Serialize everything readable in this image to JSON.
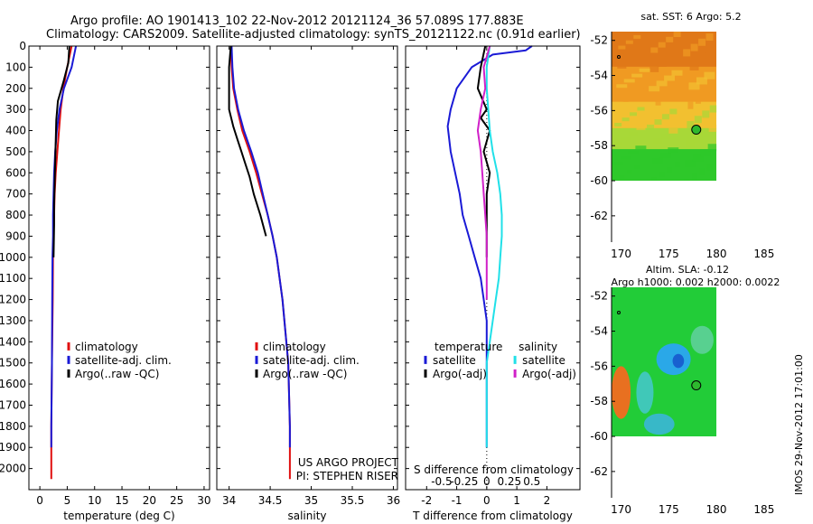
{
  "header": {
    "line1": "Argo profile: AO 1901413_102 22-Nov-2012 20121124_36 57.089S 177.883E",
    "line2": "Climatology: CARS2009. Satellite-adjusted climatology: synTS_20121122.nc (0.91d earlier)"
  },
  "side_label": "IMOS 29-Nov-2012 17:01:00",
  "colors": {
    "red": "#e01010",
    "blue": "#1a1ad6",
    "black": "#000000",
    "cyan": "#20e0e8",
    "magenta": "#d020c8"
  },
  "chart_data": [
    {
      "type": "line",
      "id": "temperature",
      "xlabel": "temperature (deg C)",
      "xlim": [
        -2,
        31
      ],
      "ylim": [
        2100,
        0
      ],
      "xticks": [
        0,
        5,
        10,
        15,
        20,
        25,
        30
      ],
      "yticks": [
        0,
        100,
        200,
        300,
        400,
        500,
        600,
        700,
        800,
        900,
        1000,
        1100,
        1200,
        1300,
        1400,
        1500,
        1600,
        1700,
        1800,
        1900,
        2000
      ],
      "legend_placement": "lower-center",
      "series": [
        {
          "name": "climatology",
          "color": "#e01010",
          "x": [
            5.8,
            5.0,
            4.3,
            3.8,
            3.5,
            3.2,
            2.9,
            2.7,
            2.6,
            2.5,
            2.4,
            2.35,
            2.2,
            2.1,
            2.1
          ],
          "y": [
            0,
            100,
            200,
            300,
            400,
            500,
            600,
            700,
            800,
            900,
            1000,
            1200,
            1500,
            1800,
            2050
          ]
        },
        {
          "name": "satellite-adj. clim.",
          "color": "#1a1ad6",
          "x": [
            6.6,
            5.8,
            4.4,
            3.6,
            3.1,
            2.8,
            2.6,
            2.5,
            2.4,
            2.4,
            2.3,
            2.25,
            2.2,
            2.1,
            2.1
          ],
          "y": [
            0,
            100,
            200,
            300,
            400,
            500,
            600,
            700,
            800,
            900,
            1000,
            1200,
            1500,
            1800,
            1900
          ]
        },
        {
          "name": "Argo(..raw -QC)",
          "color": "#000000",
          "x": [
            5.4,
            5.2,
            4.3,
            3.3,
            3.0,
            2.9,
            2.8,
            2.7,
            2.6,
            2.6,
            2.5
          ],
          "y": [
            0,
            80,
            170,
            260,
            350,
            450,
            550,
            650,
            750,
            850,
            1000
          ]
        }
      ]
    },
    {
      "type": "line",
      "id": "salinity",
      "xlabel": "salinity",
      "xlim": [
        33.85,
        36.05
      ],
      "ylim": [
        2100,
        0
      ],
      "xticks": [
        34,
        34.5,
        35,
        35.5,
        36
      ],
      "legend_placement": "lower-center",
      "series": [
        {
          "name": "climatology",
          "color": "#e01010",
          "x": [
            34.02,
            34.03,
            34.05,
            34.1,
            34.16,
            34.25,
            34.33,
            34.4,
            34.47,
            34.53,
            34.58,
            34.65,
            34.72,
            34.74,
            34.74
          ],
          "y": [
            0,
            100,
            200,
            300,
            400,
            500,
            600,
            700,
            800,
            900,
            1000,
            1200,
            1500,
            1800,
            2050
          ]
        },
        {
          "name": "satellite-adj. clim.",
          "color": "#1a1ad6",
          "x": [
            34.03,
            34.04,
            34.06,
            34.11,
            34.18,
            34.27,
            34.35,
            34.41,
            34.47,
            34.53,
            34.58,
            34.65,
            34.72,
            34.74,
            34.74
          ],
          "y": [
            0,
            100,
            200,
            300,
            400,
            500,
            600,
            700,
            800,
            900,
            1000,
            1200,
            1500,
            1800,
            1900
          ]
        },
        {
          "name": "Argo(..raw -QC)",
          "color": "#000000",
          "x": [
            34.02,
            34.0,
            34.0,
            34.0,
            34.05,
            34.1,
            34.15,
            34.2,
            34.25,
            34.3,
            34.38,
            34.45
          ],
          "y": [
            0,
            100,
            200,
            300,
            380,
            440,
            500,
            560,
            620,
            700,
            800,
            900
          ]
        }
      ],
      "annotations": [
        "US ARGO PROJECT",
        "PI: STEPHEN RISER"
      ]
    },
    {
      "type": "line",
      "id": "difference",
      "xlabel": "T difference from climatology",
      "xlabel_top": "S difference from climatology",
      "xlim": [
        -2.7,
        3.1
      ],
      "ylim": [
        2100,
        0
      ],
      "xticks": [
        -2,
        -1,
        0,
        1,
        2
      ],
      "xticks_s": [
        "-0.5",
        "-0.25",
        "0",
        "0.25",
        "0.5"
      ],
      "legend_groups": [
        "temperature",
        "salinity"
      ],
      "series": [
        {
          "name": "satellite",
          "group": "temperature",
          "color": "#1a1ad6",
          "x": [
            1.5,
            1.3,
            0.2,
            -0.5,
            -1.0,
            -1.2,
            -1.3,
            -1.2,
            -1.05,
            -0.9,
            -0.8,
            -0.6,
            -0.4,
            -0.2,
            -0.1,
            0,
            0,
            0,
            0
          ],
          "y": [
            0,
            20,
            40,
            100,
            200,
            300,
            380,
            500,
            600,
            700,
            800,
            900,
            1000,
            1100,
            1200,
            1300,
            1500,
            1800,
            1900
          ]
        },
        {
          "name": "Argo(-adj)",
          "group": "temperature",
          "color": "#000000",
          "x": [
            -0.05,
            -0.2,
            -0.3,
            0,
            -0.2,
            0.1,
            -0.1,
            0.1,
            0,
            0,
            0
          ],
          "y": [
            0,
            100,
            200,
            300,
            340,
            400,
            500,
            600,
            700,
            850,
            1000
          ]
        },
        {
          "name": "satellite",
          "group": "salinity",
          "color": "#20e0e8",
          "x": [
            0.1,
            0.0,
            0.0,
            0.05,
            0.1,
            0.2,
            0.35,
            0.45,
            0.5,
            0.5,
            0.45,
            0.4,
            0.3,
            0.2,
            0.1,
            0,
            0,
            0
          ],
          "y": [
            0,
            100,
            200,
            300,
            400,
            500,
            600,
            700,
            800,
            900,
            1000,
            1100,
            1200,
            1300,
            1400,
            1500,
            1800,
            1900
          ]
        },
        {
          "name": "Argo(-adj)",
          "group": "salinity",
          "color": "#d020c8",
          "x": [
            0.1,
            -0.1,
            -0.05,
            -0.2,
            -0.3,
            -0.2,
            -0.15,
            -0.1,
            -0.05,
            0,
            0,
            0
          ],
          "y": [
            0,
            100,
            200,
            300,
            400,
            500,
            600,
            700,
            800,
            900,
            1000,
            1200
          ]
        }
      ]
    },
    {
      "type": "heatmap",
      "id": "sst-map",
      "title": "sat. SST: 6 Argo: 5.2",
      "xlim": [
        169,
        187
      ],
      "ylim": [
        -63.5,
        -51.5
      ],
      "xticks": [
        170,
        175,
        180,
        185
      ],
      "yticks": [
        -52,
        -54,
        -56,
        -58,
        -60,
        -62
      ],
      "data_extent": {
        "x": [
          169,
          180
        ],
        "y": [
          -60,
          -51.5
        ]
      },
      "argo_position": {
        "lon": 177.883,
        "lat": -57.089
      },
      "regions": [
        {
          "y": [
            -51.5,
            -53.5
          ],
          "color": "#e07818"
        },
        {
          "y": [
            -53.5,
            -55.5
          ],
          "color": "#f09a22"
        },
        {
          "y": [
            -55.5,
            -57.0
          ],
          "color": "#f2c030"
        },
        {
          "y": [
            -57.0,
            -58.2
          ],
          "color": "#a8d838"
        },
        {
          "y": [
            -58.2,
            -60.0
          ],
          "color": "#2ec82a"
        }
      ]
    },
    {
      "type": "heatmap",
      "id": "sla-map",
      "title": "Altim. SLA: -0.12",
      "subtitle": "Argo h1000: 0.002 h2000: 0.0022",
      "xlim": [
        169,
        187
      ],
      "ylim": [
        -63.5,
        -51.5
      ],
      "xticks": [
        170,
        175,
        180,
        185
      ],
      "yticks": [
        -52,
        -54,
        -56,
        -58,
        -60,
        -62
      ],
      "data_extent": {
        "x": [
          169,
          180
        ],
        "y": [
          -60,
          -51.5
        ]
      },
      "argo_position": {
        "lon": 177.883,
        "lat": -57.089
      },
      "base_color": "#22cc38",
      "features": [
        {
          "lon": 175.5,
          "lat": -55.6,
          "rx": 1.8,
          "ry": 0.9,
          "color": "#2aa8e8"
        },
        {
          "lon": 176.0,
          "lat": -55.7,
          "rx": 0.6,
          "ry": 0.4,
          "color": "#1860d0"
        },
        {
          "lon": 172.5,
          "lat": -57.5,
          "rx": 0.9,
          "ry": 1.2,
          "color": "#40c8b8"
        },
        {
          "lon": 170.0,
          "lat": -57.5,
          "rx": 1.0,
          "ry": 1.5,
          "color": "#e87020"
        },
        {
          "lon": 174.0,
          "lat": -59.3,
          "rx": 1.6,
          "ry": 0.6,
          "color": "#38b8c8"
        },
        {
          "lon": 178.5,
          "lat": -54.5,
          "rx": 1.2,
          "ry": 0.8,
          "color": "#58d090"
        }
      ]
    }
  ]
}
